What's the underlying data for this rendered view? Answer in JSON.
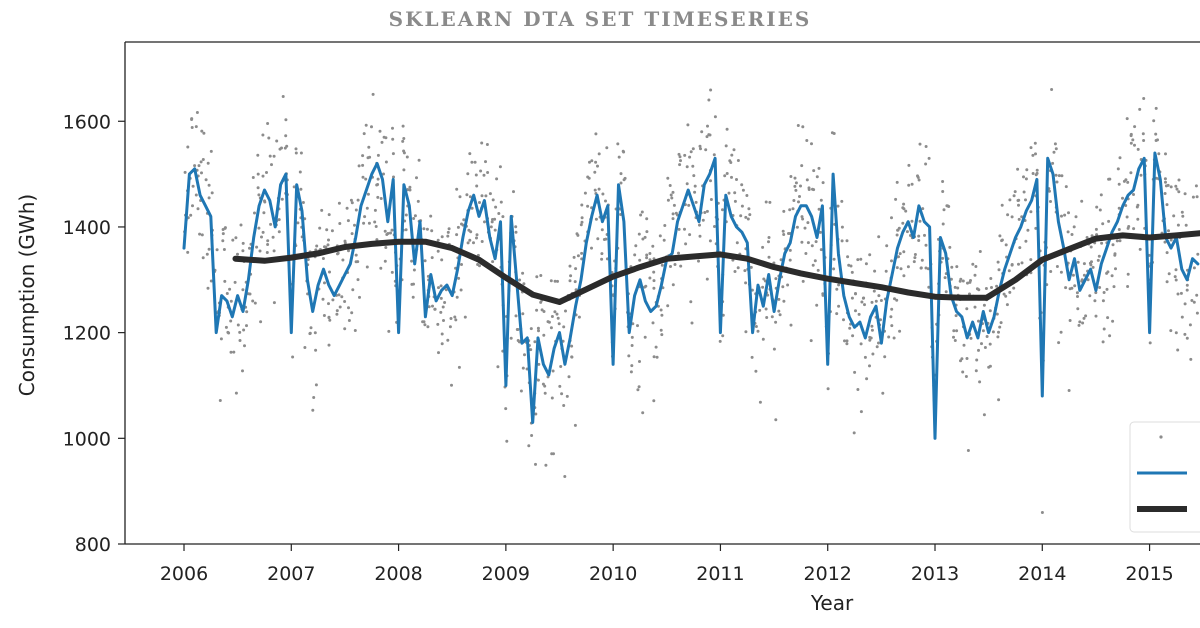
{
  "banner": {
    "title": "SKLEARN DTA SET TIMESERIES"
  },
  "chart_data": {
    "type": "line",
    "title": "",
    "xlabel": "Year",
    "ylabel": "Consumption (GWh)",
    "xlim": [
      2005.45,
      2015.47
    ],
    "ylim": [
      800,
      1750
    ],
    "x_ticks": [
      2006,
      2007,
      2008,
      2009,
      2010,
      2011,
      2012,
      2013,
      2014,
      2015
    ],
    "y_ticks": [
      800,
      1000,
      1200,
      1400,
      1600
    ],
    "legend": "lower-right",
    "grid": false,
    "series": [
      {
        "kind": "scatter",
        "color": "#8c8c8c",
        "points_description": "daily values scattered between roughly 850 and 1700 GWh around the 7-day mean"
      },
      {
        "kind": "line",
        "color": "#1f77b4",
        "x": [
          2006.0,
          2006.05,
          2006.1,
          2006.15,
          2006.2,
          2006.25,
          2006.3,
          2006.35,
          2006.4,
          2006.45,
          2006.5,
          2006.55,
          2006.6,
          2006.65,
          2006.7,
          2006.75,
          2006.8,
          2006.85,
          2006.9,
          2006.95,
          2007.0,
          2007.05,
          2007.1,
          2007.15,
          2007.2,
          2007.25,
          2007.3,
          2007.35,
          2007.4,
          2007.45,
          2007.5,
          2007.55,
          2007.6,
          2007.65,
          2007.7,
          2007.75,
          2007.8,
          2007.85,
          2007.9,
          2007.95,
          2008.0,
          2008.05,
          2008.1,
          2008.15,
          2008.2,
          2008.25,
          2008.3,
          2008.35,
          2008.4,
          2008.45,
          2008.5,
          2008.55,
          2008.6,
          2008.65,
          2008.7,
          2008.75,
          2008.8,
          2008.85,
          2008.9,
          2008.95,
          2009.0,
          2009.05,
          2009.1,
          2009.15,
          2009.2,
          2009.25,
          2009.3,
          2009.35,
          2009.4,
          2009.45,
          2009.5,
          2009.55,
          2009.6,
          2009.65,
          2009.7,
          2009.75,
          2009.8,
          2009.85,
          2009.9,
          2009.95,
          2010.0,
          2010.05,
          2010.1,
          2010.15,
          2010.2,
          2010.25,
          2010.3,
          2010.35,
          2010.4,
          2010.45,
          2010.5,
          2010.55,
          2010.6,
          2010.65,
          2010.7,
          2010.75,
          2010.8,
          2010.85,
          2010.9,
          2010.95,
          2011.0,
          2011.05,
          2011.1,
          2011.15,
          2011.2,
          2011.25,
          2011.3,
          2011.35,
          2011.4,
          2011.45,
          2011.5,
          2011.55,
          2011.6,
          2011.65,
          2011.7,
          2011.75,
          2011.8,
          2011.85,
          2011.9,
          2011.95,
          2012.0,
          2012.05,
          2012.1,
          2012.15,
          2012.2,
          2012.25,
          2012.3,
          2012.35,
          2012.4,
          2012.45,
          2012.5,
          2012.55,
          2012.6,
          2012.65,
          2012.7,
          2012.75,
          2012.8,
          2012.85,
          2012.9,
          2012.95,
          2013.0,
          2013.05,
          2013.1,
          2013.15,
          2013.2,
          2013.25,
          2013.3,
          2013.35,
          2013.4,
          2013.45,
          2013.5,
          2013.55,
          2013.6,
          2013.65,
          2013.7,
          2013.75,
          2013.8,
          2013.85,
          2013.9,
          2013.95,
          2014.0,
          2014.05,
          2014.1,
          2014.15,
          2014.2,
          2014.25,
          2014.3,
          2014.35,
          2014.4,
          2014.45,
          2014.5,
          2014.55,
          2014.6,
          2014.65,
          2014.7,
          2014.75,
          2014.8,
          2014.85,
          2014.9,
          2014.95,
          2015.0,
          2015.05,
          2015.1,
          2015.15,
          2015.2,
          2015.25,
          2015.3,
          2015.35,
          2015.4,
          2015.45
        ],
        "y": [
          1360,
          1500,
          1510,
          1460,
          1440,
          1420,
          1200,
          1270,
          1260,
          1230,
          1270,
          1240,
          1300,
          1380,
          1440,
          1470,
          1450,
          1400,
          1480,
          1500,
          1200,
          1480,
          1430,
          1300,
          1240,
          1290,
          1320,
          1290,
          1270,
          1290,
          1310,
          1330,
          1380,
          1440,
          1470,
          1500,
          1520,
          1490,
          1410,
          1490,
          1200,
          1480,
          1440,
          1330,
          1410,
          1230,
          1310,
          1260,
          1280,
          1290,
          1270,
          1320,
          1380,
          1430,
          1460,
          1420,
          1450,
          1380,
          1340,
          1410,
          1100,
          1420,
          1300,
          1180,
          1190,
          1030,
          1190,
          1140,
          1120,
          1170,
          1200,
          1140,
          1190,
          1250,
          1300,
          1370,
          1420,
          1460,
          1410,
          1440,
          1140,
          1480,
          1410,
          1200,
          1270,
          1300,
          1260,
          1240,
          1250,
          1290,
          1340,
          1350,
          1410,
          1440,
          1470,
          1440,
          1410,
          1480,
          1500,
          1530,
          1200,
          1460,
          1420,
          1400,
          1390,
          1370,
          1200,
          1290,
          1250,
          1310,
          1240,
          1300,
          1350,
          1370,
          1420,
          1440,
          1440,
          1420,
          1380,
          1440,
          1140,
          1500,
          1350,
          1270,
          1230,
          1210,
          1220,
          1190,
          1230,
          1250,
          1180,
          1260,
          1310,
          1360,
          1390,
          1410,
          1380,
          1440,
          1410,
          1400,
          1000,
          1380,
          1350,
          1270,
          1240,
          1230,
          1190,
          1220,
          1190,
          1240,
          1200,
          1230,
          1280,
          1320,
          1350,
          1380,
          1400,
          1430,
          1450,
          1490,
          1080,
          1530,
          1500,
          1410,
          1360,
          1300,
          1340,
          1280,
          1300,
          1320,
          1280,
          1330,
          1360,
          1390,
          1410,
          1440,
          1460,
          1470,
          1510,
          1530,
          1200,
          1540,
          1490,
          1380,
          1360,
          1380,
          1320,
          1300,
          1340,
          1330
        ]
      },
      {
        "kind": "line",
        "color": "#2b2b2b",
        "x": [
          2006.48,
          2006.75,
          2007.0,
          2007.25,
          2007.5,
          2007.75,
          2008.0,
          2008.25,
          2008.5,
          2008.75,
          2009.0,
          2009.25,
          2009.5,
          2009.75,
          2010.0,
          2010.25,
          2010.5,
          2010.75,
          2011.0,
          2011.25,
          2011.5,
          2011.75,
          2012.0,
          2012.25,
          2012.5,
          2012.75,
          2013.0,
          2013.25,
          2013.48,
          2013.75,
          2014.0,
          2014.25,
          2014.5,
          2014.75,
          2015.0,
          2015.25,
          2015.47
        ],
        "y": [
          1340,
          1336,
          1342,
          1350,
          1362,
          1368,
          1372,
          1372,
          1360,
          1338,
          1304,
          1272,
          1258,
          1282,
          1306,
          1324,
          1340,
          1344,
          1348,
          1340,
          1324,
          1312,
          1302,
          1294,
          1286,
          1276,
          1268,
          1266,
          1266,
          1300,
          1338,
          1358,
          1378,
          1384,
          1380,
          1384,
          1388
        ]
      }
    ]
  }
}
